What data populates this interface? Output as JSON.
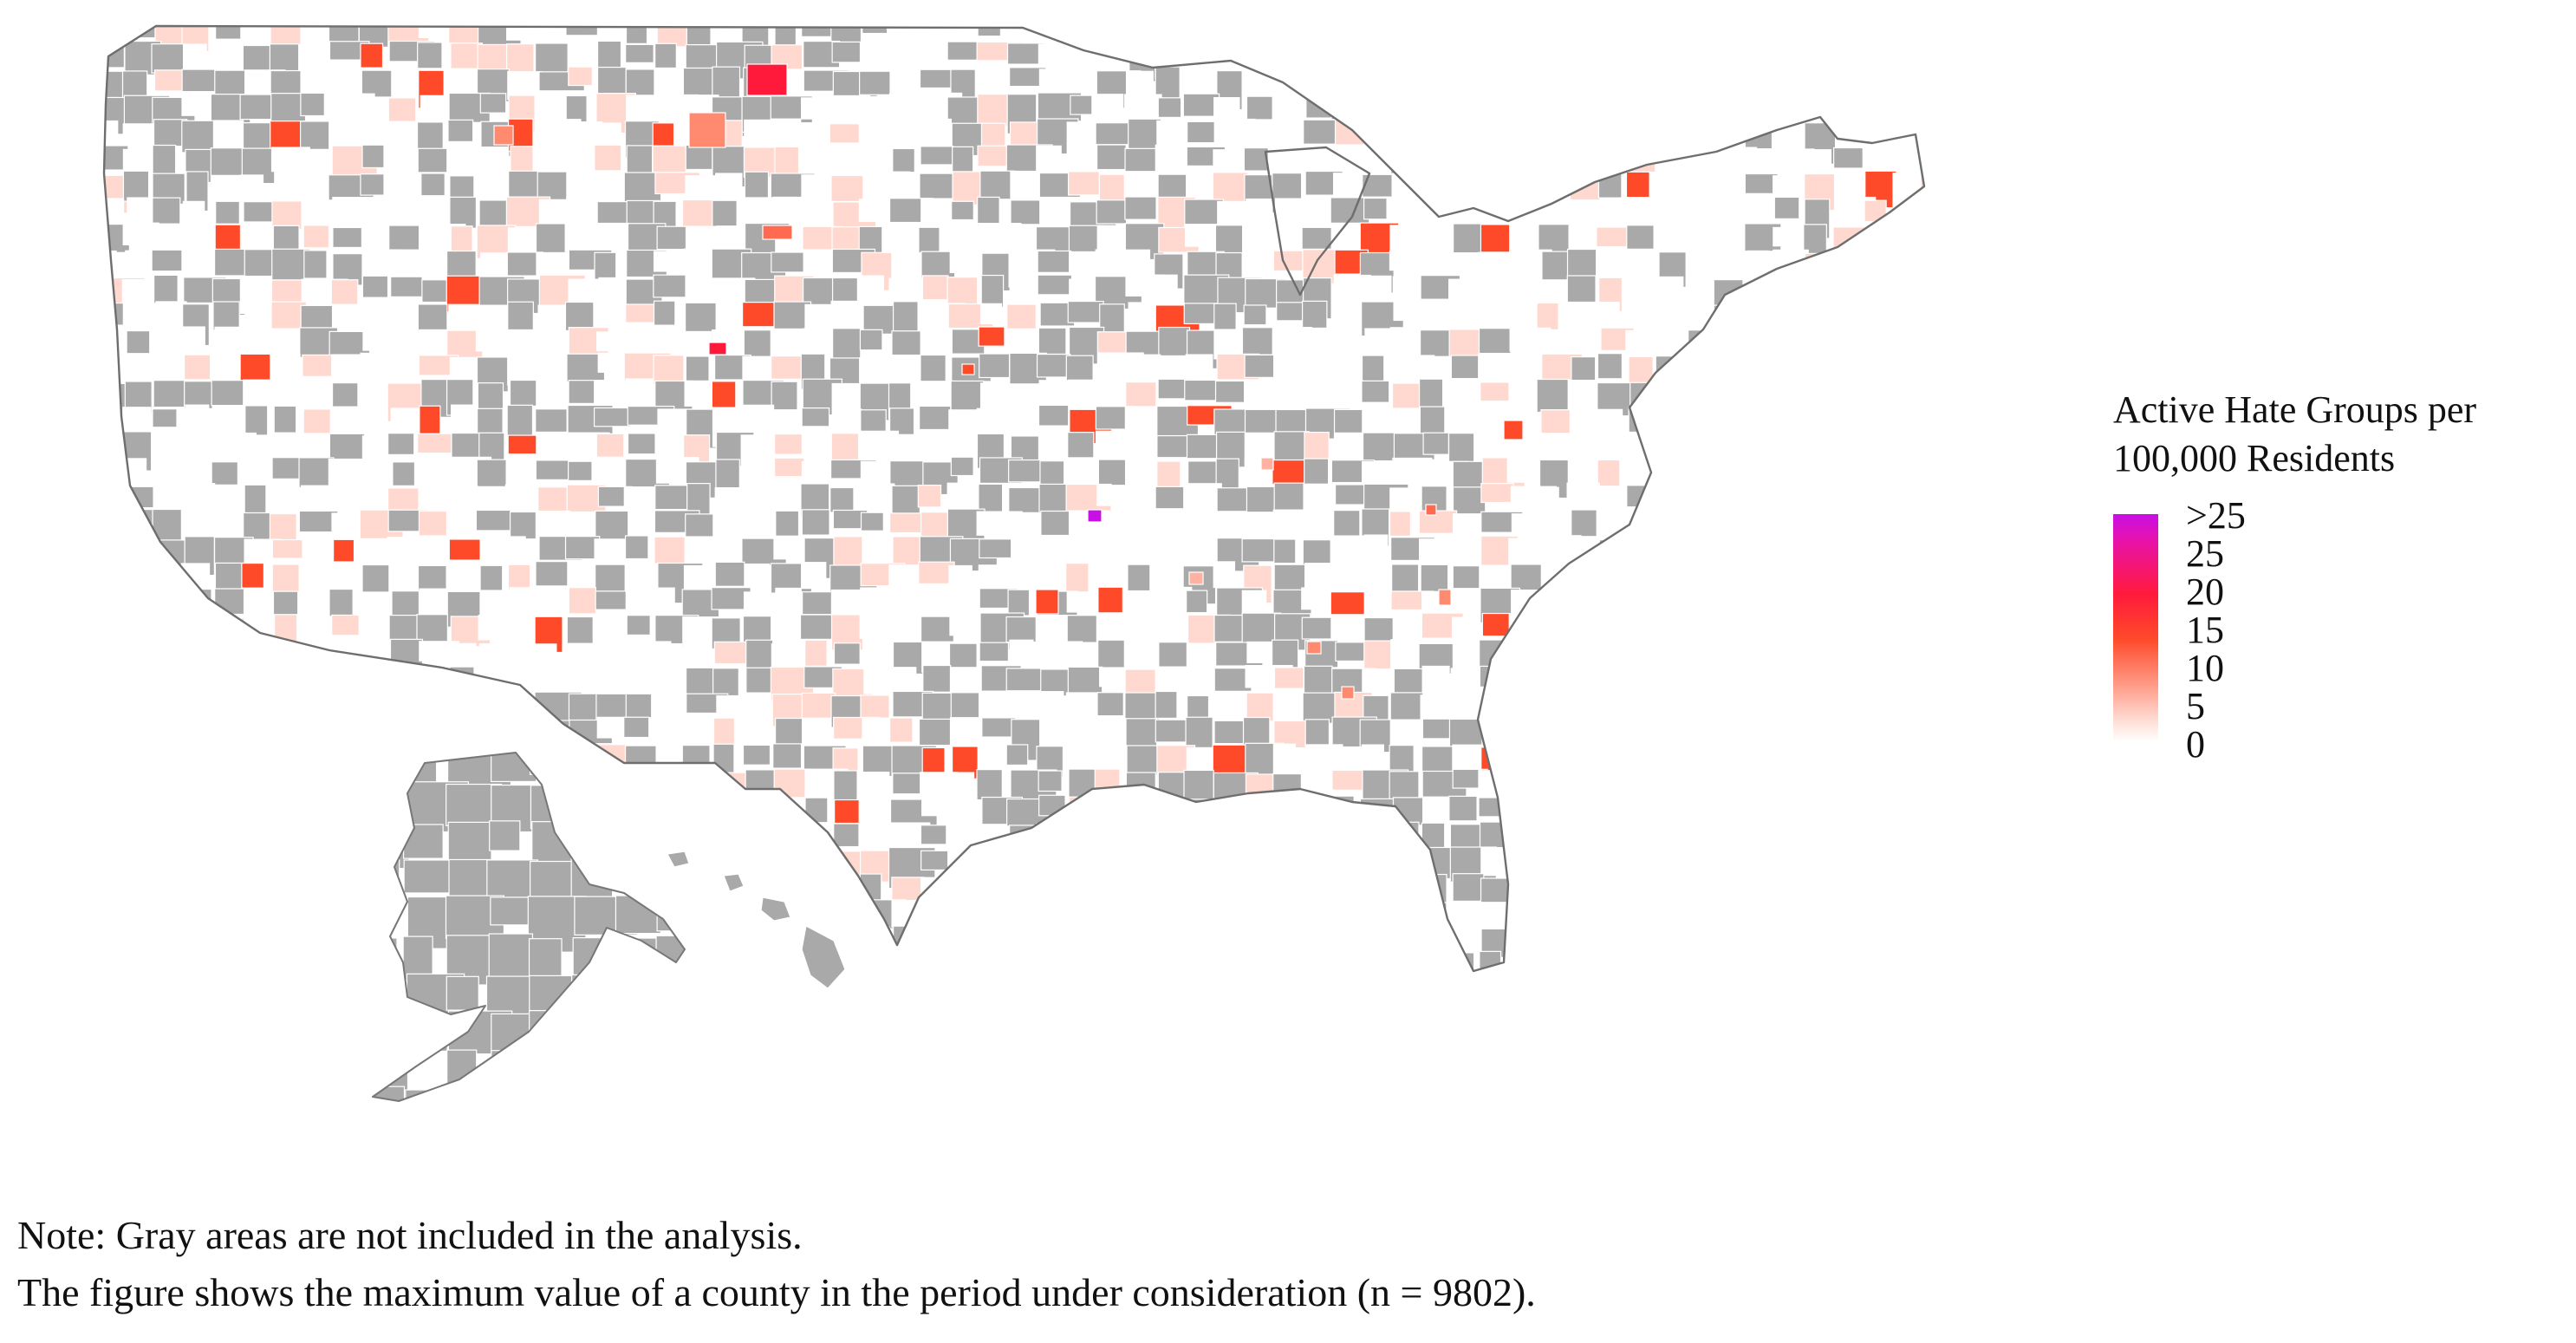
{
  "legend": {
    "title_line1": "Active Hate Groups per",
    "title_line2": "100,000 Residents",
    "ticks": [
      ">25",
      "25",
      "20",
      "15",
      "10",
      "5",
      "0"
    ],
    "colors": {
      "max": "#c80fe6",
      "high": "#ff1a3c",
      "mid": "#ff4a2a",
      "low": "#ffd9d0",
      "zero": "#ffffff",
      "excluded": "#a9a9a9"
    }
  },
  "note": {
    "line1": "Note: Gray areas are not included in the analysis.",
    "line2": "The figure shows the maximum value of a county in the period under consideration (n = 9802)."
  },
  "map": {
    "regions": [
      "Contiguous United States",
      "Alaska",
      "Hawaii"
    ],
    "shading": "Active hate groups per 100,000 residents, maximum per county",
    "excluded_label": "not included in the analysis"
  }
}
